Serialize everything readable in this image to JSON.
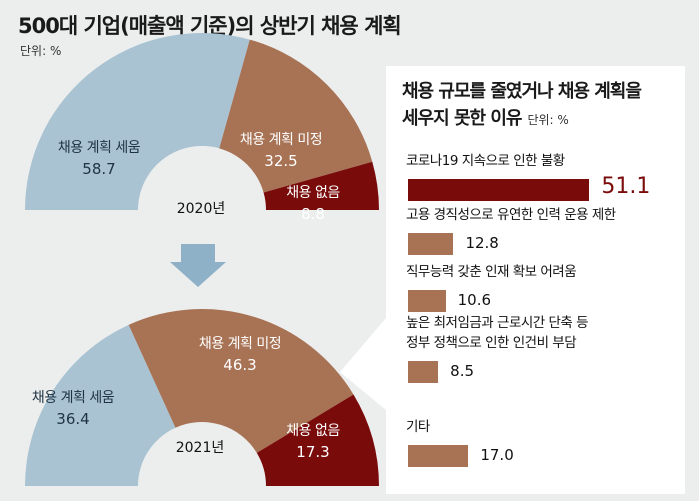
{
  "title": "500대 기업(매출액 기준)의 상반기 채용 계획",
  "unit": "단위: %",
  "colors": {
    "background": "#eceeee",
    "plan_hire": "#a9c3d2",
    "undecided": "#a87255",
    "no_hire": "#7a0b0b",
    "arrow": "#8fb1c8",
    "panel": "#ffffff"
  },
  "chart_data": [
    {
      "type": "pie",
      "subtype": "semi-donut",
      "title": "2020년",
      "categories": [
        "채용 계획 세움",
        "채용 계획 미정",
        "채용 없음"
      ],
      "values": [
        58.7,
        32.5,
        8.8
      ],
      "value_labels": [
        "58.7",
        "32.5",
        "8.8"
      ]
    },
    {
      "type": "pie",
      "subtype": "semi-donut",
      "title": "2021년",
      "categories": [
        "채용 계획 세움",
        "채용 계획 미정",
        "채용 없음"
      ],
      "values": [
        36.4,
        46.3,
        17.3
      ],
      "value_labels": [
        "36.4",
        "46.3",
        "17.3"
      ]
    },
    {
      "type": "bar",
      "orientation": "horizontal",
      "title_lines": [
        "채용 규모를 줄였거나 채용 계획을",
        "세우지 못한 이유"
      ],
      "unit": "단위: %",
      "categories": [
        [
          "코로나19 지속으로 인한 불황"
        ],
        [
          "고용 경직성으로 유연한 인력 운용 제한"
        ],
        [
          "직무능력 갖춘 인재 확보 어려움"
        ],
        [
          "높은 최저임금과 근로시간 단축 등",
          "정부 정책으로 인한 인건비 부담"
        ],
        [
          "기타"
        ]
      ],
      "values": [
        51.1,
        12.8,
        10.6,
        8.5,
        17.0
      ],
      "value_labels": [
        "51.1",
        "12.8",
        "10.6",
        "8.5",
        "17.0"
      ],
      "highlight_index": 0
    }
  ]
}
